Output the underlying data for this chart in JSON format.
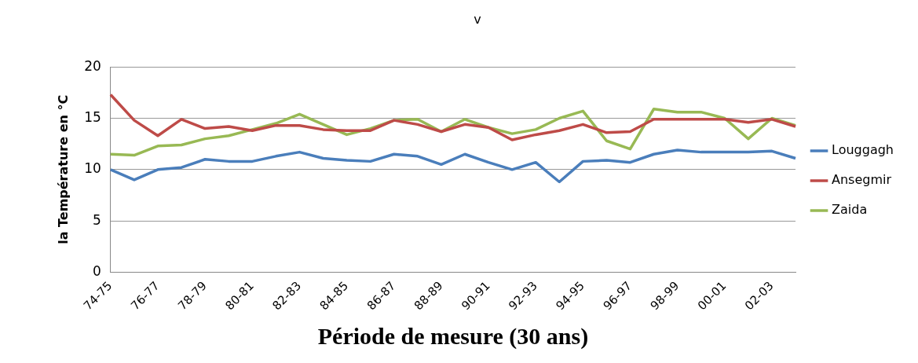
{
  "chart_data": {
    "type": "line",
    "title": "v",
    "xlabel": "Période de mesure (30 ans)",
    "ylabel": "la Température en °C",
    "categories": [
      "74-75",
      null,
      "76-77",
      null,
      "78-79",
      null,
      "80-81",
      null,
      "82-83",
      null,
      "84-85",
      null,
      "86-87",
      null,
      "88-89",
      null,
      "90-91",
      null,
      "92-93",
      null,
      "94-95",
      null,
      "96-97",
      null,
      "98-99",
      null,
      "00-01",
      null,
      "02-03",
      null
    ],
    "series": [
      {
        "name": "Louggagh",
        "color": "#4a7ebb",
        "values": [
          10,
          9,
          10,
          10.2,
          11,
          10.8,
          10.8,
          11.3,
          11.7,
          11.1,
          10.9,
          10.8,
          11.5,
          11.3,
          10.5,
          11.5,
          10.7,
          10,
          10.7,
          8.8,
          10.8,
          10.9,
          10.7,
          11.5,
          11.9,
          11.7,
          11.7,
          11.7,
          11.8,
          11.1
        ]
      },
      {
        "name": "Ansegmir",
        "color": "#be4b48",
        "values": [
          17.3,
          14.8,
          13.3,
          14.9,
          14,
          14.2,
          13.8,
          14.3,
          14.3,
          13.9,
          13.8,
          13.8,
          14.8,
          14.4,
          13.7,
          14.4,
          14.1,
          12.9,
          13.4,
          13.8,
          14.4,
          13.6,
          13.7,
          14.9,
          14.9,
          14.9,
          14.9,
          14.6,
          14.9,
          14.2
        ]
      },
      {
        "name": "Zaida",
        "color": "#98b954",
        "values": [
          11.5,
          11.4,
          12.3,
          12.4,
          13,
          13.3,
          13.9,
          14.5,
          15.4,
          14.4,
          13.4,
          14,
          14.8,
          14.9,
          13.7,
          14.9,
          14.1,
          13.5,
          13.9,
          15,
          15.7,
          12.8,
          12,
          15.9,
          15.6,
          15.6,
          15,
          13,
          15,
          14.3
        ]
      }
    ],
    "ylim": [
      0,
      20
    ],
    "yticks": [
      0,
      5,
      10,
      15,
      20
    ],
    "grid": "y",
    "legend": "right",
    "marker": "none",
    "line_style": "solid"
  }
}
